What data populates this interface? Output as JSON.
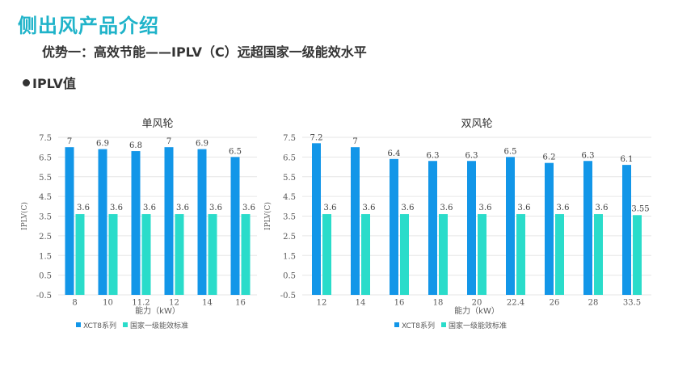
{
  "page_title": "侧出风产品介绍",
  "subtitle": "优势一：高效节能——IPLV（C）远超国家一级能效水平",
  "section_label": "IPLV值",
  "colors": {
    "title": "#1fb3c9",
    "series1": "#1296e8",
    "series2": "#2adcca",
    "grid": "#e6e6e6",
    "axis_text": "#595959"
  },
  "chart_data": [
    {
      "type": "bar",
      "title": "单风轮",
      "xlabel": "能力（kW）",
      "ylabel": "IPLV(C)",
      "ylim": [
        -0.5,
        7.5
      ],
      "yticks": [
        "-0.5",
        "0.5",
        "1.5",
        "2.5",
        "3.5",
        "4.5",
        "5.5",
        "6.5",
        "7.5"
      ],
      "grid": true,
      "legend": "bottom-left",
      "categories": [
        "8",
        "10",
        "11.2",
        "12",
        "14",
        "16"
      ],
      "series": [
        {
          "name": "XCT8系列",
          "values": [
            7,
            6.9,
            6.8,
            7,
            6.9,
            6.5
          ],
          "labels": [
            "7",
            "6.9",
            "6.8",
            "7",
            "6.9",
            "6.5"
          ]
        },
        {
          "name": "国家一级能效标准",
          "values": [
            3.6,
            3.6,
            3.6,
            3.6,
            3.6,
            3.6
          ],
          "labels": [
            "3.6",
            "3.6",
            "3.6",
            "3.6",
            "3.6",
            "3.6"
          ]
        }
      ]
    },
    {
      "type": "bar",
      "title": "双风轮",
      "xlabel": "能力（kW）",
      "ylabel": "IPLV(C)",
      "ylim": [
        -0.5,
        7.5
      ],
      "yticks": [
        "-0.5",
        "0.5",
        "1.5",
        "2.5",
        "3.5",
        "4.5",
        "5.5",
        "6.5",
        "7.5"
      ],
      "grid": true,
      "legend": "bottom-left",
      "categories": [
        "12",
        "14",
        "16",
        "18",
        "20",
        "22.4",
        "26",
        "28",
        "33.5"
      ],
      "series": [
        {
          "name": "XCT8系列",
          "values": [
            7.2,
            7,
            6.4,
            6.3,
            6.3,
            6.5,
            6.2,
            6.3,
            6.1
          ],
          "labels": [
            "7.2",
            "7",
            "6.4",
            "6.3",
            "6.3",
            "6.5",
            "6.2",
            "6.3",
            "6.1"
          ]
        },
        {
          "name": "国家一级能效标准",
          "values": [
            3.6,
            3.6,
            3.6,
            3.6,
            3.6,
            3.6,
            3.6,
            3.6,
            3.55
          ],
          "labels": [
            "3.6",
            "3.6",
            "3.6",
            "3.6",
            "3.6",
            "3.6",
            "3.6",
            "3.6",
            "3.55"
          ]
        }
      ]
    }
  ]
}
